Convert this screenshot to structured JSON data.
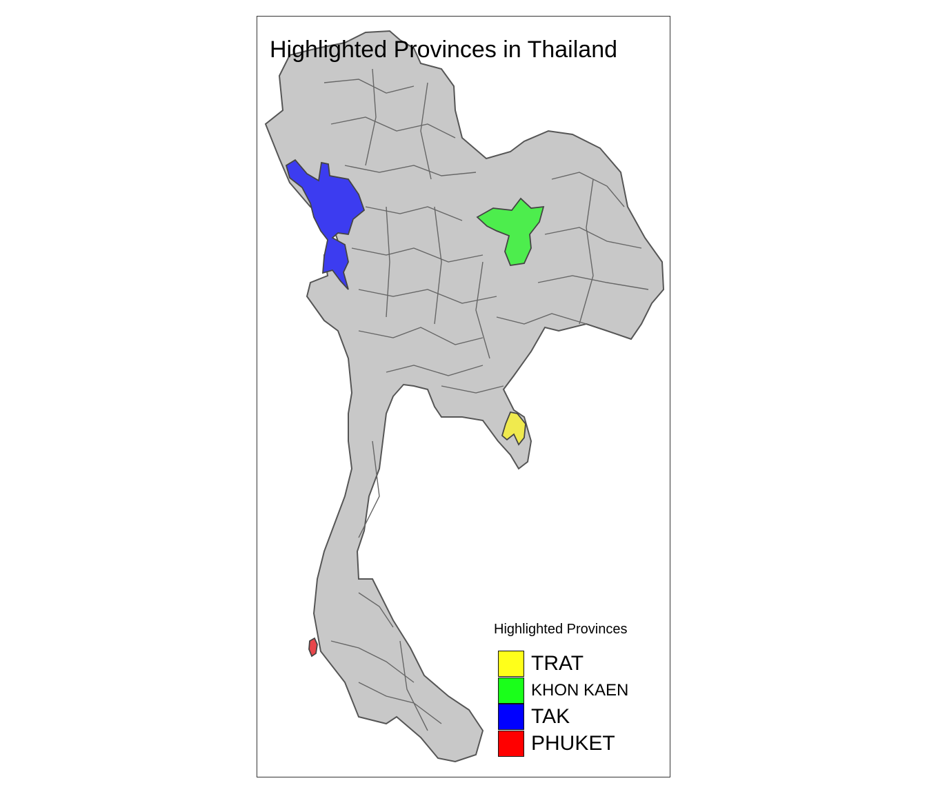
{
  "title": "Highlighted Provinces in Thailand",
  "map": {
    "country": "Thailand",
    "base_fill": "#c8c8c8",
    "border_color": "#555555",
    "highlighted": [
      {
        "province": "TRAT",
        "fill": "#f0ea4e"
      },
      {
        "province": "KHON KAEN",
        "fill": "#4ded4d"
      },
      {
        "province": "TAK",
        "fill": "#3c3cf0"
      },
      {
        "province": "PHUKET",
        "fill": "#e8464b"
      }
    ]
  },
  "legend": {
    "title": "Highlighted Provinces",
    "items": [
      {
        "label": "TRAT",
        "color": "#ffff1a"
      },
      {
        "label": "KHON KAEN",
        "color": "#1aff1a"
      },
      {
        "label": "TAK",
        "color": "#0000ff"
      },
      {
        "label": "PHUKET",
        "color": "#ff0000"
      }
    ]
  }
}
